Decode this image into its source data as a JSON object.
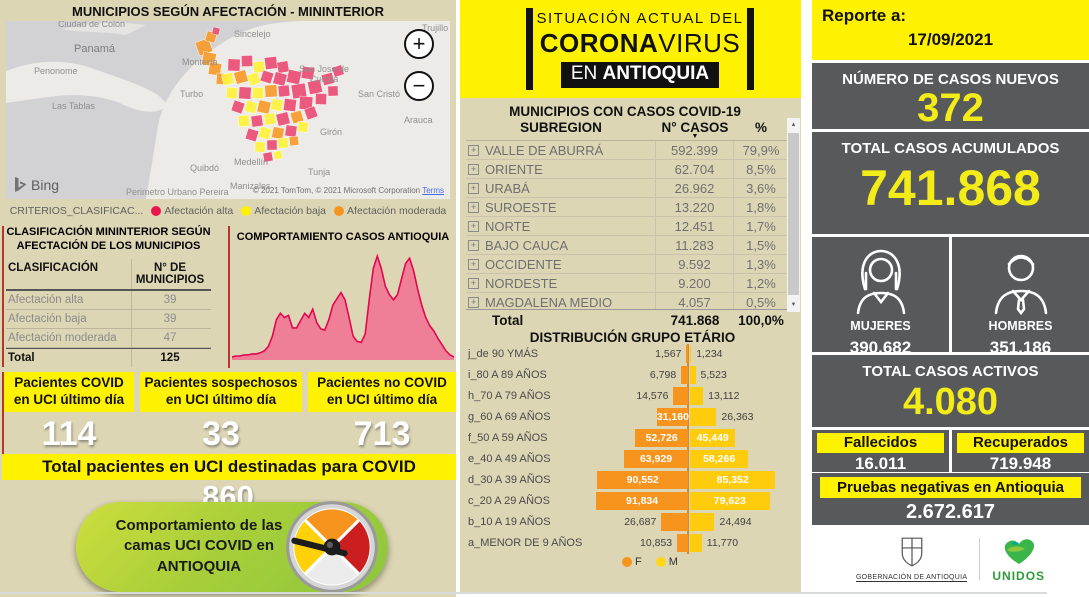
{
  "colors": {
    "yellow": "#fff200",
    "dark_gray": "#58595b",
    "tan_bg": "#ddd6b4",
    "afectacion_alta": "#e8174b",
    "afectacion_baja": "#fff100",
    "afectacion_moderada": "#f7941d",
    "bar_f": "#f7941d",
    "bar_m": "#ffcc0d",
    "area_fill": "#ef7f97",
    "area_stroke": "#e2074e",
    "green_button": "#8dc63f"
  },
  "left": {
    "map_section": {
      "title": "MUNICIPIOS SEGÚN AFECTACIÓN - MININTERIOR",
      "legend_prefix": "CRITERIOS_CLASIFICAC...",
      "legend": [
        {
          "label": "Afectación alta",
          "color": "#e8174b"
        },
        {
          "label": "Afectación baja",
          "color": "#fff100"
        },
        {
          "label": "Afectación moderada",
          "color": "#f7941d"
        }
      ],
      "map": {
        "labels": [
          "Panamá",
          "Penonome",
          "Las Tablas",
          "Ciudad de Colón",
          "Sincelejo",
          "Montería",
          "Turbo",
          "San Jose de Cucuta",
          "San Cristó",
          "Arauca",
          "Girón",
          "Tunja",
          "Medellín",
          "Quibdó",
          "Manizales",
          "Perimetro Urbano Pereira",
          "Trujillo"
        ],
        "bing_label": "Bing",
        "copyright": "© 2021 TomTom, © 2021 Microsoft Corporation",
        "terms_label": "Terms",
        "zoom_in": "+",
        "zoom_out": "−"
      }
    },
    "classification": {
      "title_line1": "CLASIFICACIÓN MININTERIOR SEGÚN",
      "title_line2": "AFECTACIÓN DE LOS MUNICIPIOS",
      "col1": "CLASIFICACIÓN",
      "col2": "N° DE MUNICIPIOS",
      "rows": [
        {
          "label": "Afectación alta",
          "value": "39"
        },
        {
          "label": "Afectación baja",
          "value": "39"
        },
        {
          "label": "Afectación moderada",
          "value": "47"
        }
      ],
      "total_label": "Total",
      "total_value": "125"
    },
    "comportamiento_title": "COMPORTAMIENTO CASOS ANTIOQUIA",
    "uci_cards": [
      {
        "title_line1": "Pacientes COVID",
        "title_line2": "en UCI último día",
        "value": "114"
      },
      {
        "title_line1": "Pacientes sospechosos",
        "title_line2": "en UCI último día",
        "value": "33"
      },
      {
        "title_line1": "Pacientes no COVID",
        "title_line2": "en UCI último día",
        "value": "713"
      }
    ],
    "uci_total": {
      "label": "Total pacientes en UCI destinadas para COVID",
      "value": "860"
    },
    "green_button": {
      "line1": "Comportamiento de las",
      "line2": "camas UCI COVID en",
      "line3": "ANTIOQUIA"
    }
  },
  "center": {
    "header": {
      "line1": "SITUACIÓN ACTUAL DEL",
      "line2_bold": "CORONA",
      "line2_rest": "VIRUS",
      "line3_prefix": "EN ",
      "line3_bold": "ANTIOQUIA"
    },
    "municipios": {
      "title": "MUNICIPIOS CON CASOS COVID-19",
      "col_subregion": "SUBREGION",
      "col_casos": "N° CASOS",
      "col_pct": "%",
      "rows": [
        {
          "subregion": "VALLE DE ABURRÁ",
          "casos": "592.399",
          "pct": "79,9%"
        },
        {
          "subregion": "ORIENTE",
          "casos": "62.704",
          "pct": "8,5%"
        },
        {
          "subregion": "URABÁ",
          "casos": "26.962",
          "pct": "3,6%"
        },
        {
          "subregion": "SUROESTE",
          "casos": "13.220",
          "pct": "1,8%"
        },
        {
          "subregion": "NORTE",
          "casos": "12.451",
          "pct": "1,7%"
        },
        {
          "subregion": "BAJO CAUCA",
          "casos": "11.283",
          "pct": "1,5%"
        },
        {
          "subregion": "OCCIDENTE",
          "casos": "9.592",
          "pct": "1,3%"
        },
        {
          "subregion": "NORDESTE",
          "casos": "9.200",
          "pct": "1,2%"
        },
        {
          "subregion": "MAGDALENA MEDIO",
          "casos": "4.057",
          "pct": "0,5%"
        }
      ],
      "total": {
        "label": "Total",
        "casos": "741.868",
        "pct": "100,0%"
      }
    },
    "piramide_title": "DISTRIBUCIÓN GRUPO ETÁRIO",
    "piramide_legend": {
      "f": "F",
      "m": "M"
    }
  },
  "right": {
    "reporte_label": "Reporte a:",
    "reporte_fecha": "17/09/2021",
    "casos_nuevos": {
      "label": "NÚMERO DE CASOS NUEVOS",
      "value": "372"
    },
    "acumulados": {
      "label": "TOTAL CASOS ACUMULADOS",
      "value": "741.868"
    },
    "genero": {
      "mujeres_label": "MUJERES",
      "mujeres_value": "390.682",
      "hombres_label": "HOMBRES",
      "hombres_value": "351.186"
    },
    "activos": {
      "label": "TOTAL CASOS ACTIVOS",
      "value": "4.080"
    },
    "fallecidos": {
      "label": "Fallecidos",
      "value": "16.011"
    },
    "recuperados": {
      "label": "Recuperados",
      "value": "719.948"
    },
    "pruebas": {
      "label": "Pruebas negativas en Antioquia",
      "value": "2.672.617"
    },
    "footer": {
      "gobernacion": "GOBERNACIÓN DE ANTIOQUIA",
      "unidos": "UNIDOS"
    }
  },
  "chart_data": [
    {
      "type": "area",
      "title": "COMPORTAMIENTO CASOS ANTIOQUIA",
      "note": "ejes sin etiquetas visibles; valores relativos 0-100 estimados de la silueta",
      "series": [
        {
          "name": "casos",
          "values": [
            0,
            1,
            1,
            2,
            2,
            3,
            3,
            4,
            6,
            10,
            20,
            36,
            42,
            38,
            40,
            28,
            28,
            35,
            42,
            38,
            46,
            33,
            27,
            26,
            36,
            50,
            56,
            62,
            55,
            38,
            20,
            15,
            14,
            22,
            55,
            85,
            97,
            85,
            68,
            60,
            55,
            60,
            75,
            90,
            95,
            83,
            65,
            50,
            38,
            30,
            25,
            18,
            12,
            6,
            2,
            0
          ]
        }
      ],
      "fill": "#ef7f97",
      "stroke": "#e2074e",
      "grid": false,
      "legend_position": "none"
    },
    {
      "type": "bar",
      "subtype": "population_pyramid_horizontal",
      "title": "DISTRIBUCIÓN GRUPO ETÁRIO",
      "categories": [
        "j_de 90 YMÁS",
        "i_80 A 89 AÑOS",
        "h_70 A 79 AÑOS",
        "g_60 A 69 AÑOS",
        "f_50 A 59 AÑOS",
        "e_40 A 49 AÑOS",
        "d_30 A 39 AÑOS",
        "c_20 A 29 AÑOS",
        "b_10 A 19 AÑOS",
        "a_MENOR DE 9 AÑOS"
      ],
      "series": [
        {
          "name": "F",
          "color": "#f7941d",
          "values": [
            1567,
            6798,
            14576,
            31160,
            52726,
            63929,
            90552,
            91834,
            26687,
            10853
          ],
          "labels": [
            "1,567",
            "6,798",
            "14,576",
            "31,160",
            "52,726",
            "63,929",
            "90,552",
            "91,834",
            "26,687",
            "10,853"
          ]
        },
        {
          "name": "M",
          "color": "#ffcc0d",
          "values": [
            1234,
            5523,
            13112,
            26363,
            45449,
            58266,
            85352,
            79623,
            24494,
            11770
          ],
          "labels": [
            "1,234",
            "5,523",
            "13,112",
            "26,363",
            "45,449",
            "58,266",
            "85,352",
            "79,623",
            "24,494",
            "11,770"
          ]
        }
      ],
      "legend_position": "bottom"
    }
  ]
}
